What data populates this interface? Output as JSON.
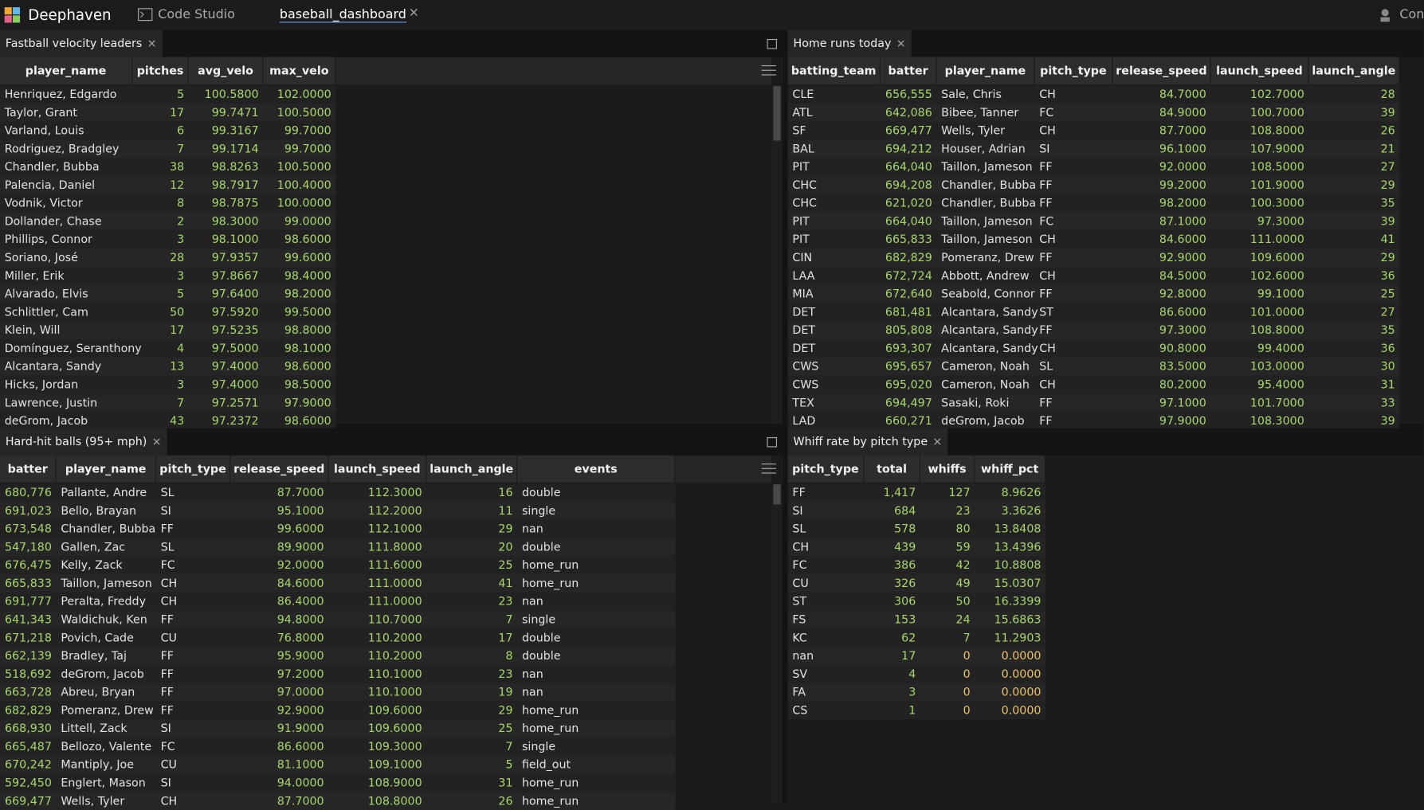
{
  "header": {
    "brand": "Deephaven",
    "tabs": [
      "Code Studio",
      "baseball_dashboard"
    ],
    "right": "Con"
  },
  "colors": {
    "number": "#a8d86a",
    "zero": "#e9c46a",
    "text": "#e2e2e2"
  },
  "panels": [
    {
      "title": "Fastball velocity leaders",
      "columns": [
        "player_name",
        "pitches",
        "avg_velo",
        "max_velo"
      ],
      "rows": [
        [
          "Henriquez, Edgardo",
          "5",
          "100.5800",
          "102.0000"
        ],
        [
          "Taylor, Grant",
          "17",
          "99.7471",
          "100.5000"
        ],
        [
          "Varland, Louis",
          "6",
          "99.3167",
          "99.7000"
        ],
        [
          "Rodriguez, Bradgley",
          "7",
          "99.1714",
          "99.7000"
        ],
        [
          "Chandler, Bubba",
          "38",
          "98.8263",
          "100.5000"
        ],
        [
          "Palencia, Daniel",
          "12",
          "98.7917",
          "100.4000"
        ],
        [
          "Vodnik, Victor",
          "8",
          "98.7875",
          "100.0000"
        ],
        [
          "Dollander, Chase",
          "2",
          "98.3000",
          "99.0000"
        ],
        [
          "Phillips, Connor",
          "3",
          "98.1000",
          "98.6000"
        ],
        [
          "Soriano, José",
          "28",
          "97.9357",
          "99.6000"
        ],
        [
          "Miller, Erik",
          "3",
          "97.8667",
          "98.4000"
        ],
        [
          "Alvarado, Elvis",
          "5",
          "97.6400",
          "98.2000"
        ],
        [
          "Schlittler, Cam",
          "50",
          "97.5920",
          "99.5000"
        ],
        [
          "Klein, Will",
          "17",
          "97.5235",
          "98.8000"
        ],
        [
          "Domínguez, Seranthony",
          "4",
          "97.5000",
          "98.1000"
        ],
        [
          "Alcantara, Sandy",
          "13",
          "97.4000",
          "98.6000"
        ],
        [
          "Hicks, Jordan",
          "3",
          "97.4000",
          "98.5000"
        ],
        [
          "Lawrence, Justin",
          "7",
          "97.2571",
          "97.9000"
        ],
        [
          "deGrom, Jacob",
          "43",
          "97.2372",
          "98.6000"
        ]
      ]
    },
    {
      "title": "Home runs today",
      "columns": [
        "batting_team",
        "batter",
        "player_name",
        "pitch_type",
        "release_speed",
        "launch_speed",
        "launch_angle"
      ],
      "rows": [
        [
          "CLE",
          "656,555",
          "Sale, Chris",
          "CH",
          "84.7000",
          "102.7000",
          "28"
        ],
        [
          "ATL",
          "642,086",
          "Bibee, Tanner",
          "FC",
          "84.9000",
          "100.7000",
          "39"
        ],
        [
          "SF",
          "669,477",
          "Wells, Tyler",
          "CH",
          "87.7000",
          "108.8000",
          "26"
        ],
        [
          "BAL",
          "694,212",
          "Houser, Adrian",
          "SI",
          "96.1000",
          "107.9000",
          "21"
        ],
        [
          "PIT",
          "664,040",
          "Taillon, Jameson",
          "FF",
          "92.0000",
          "108.5000",
          "27"
        ],
        [
          "CHC",
          "694,208",
          "Chandler, Bubba",
          "FF",
          "99.2000",
          "101.9000",
          "29"
        ],
        [
          "CHC",
          "621,020",
          "Chandler, Bubba",
          "FF",
          "98.2000",
          "100.3000",
          "35"
        ],
        [
          "PIT",
          "664,040",
          "Taillon, Jameson",
          "FC",
          "87.1000",
          "97.3000",
          "39"
        ],
        [
          "PIT",
          "665,833",
          "Taillon, Jameson",
          "CH",
          "84.6000",
          "111.0000",
          "41"
        ],
        [
          "CIN",
          "682,829",
          "Pomeranz, Drew",
          "FF",
          "92.9000",
          "109.6000",
          "29"
        ],
        [
          "LAA",
          "672,724",
          "Abbott, Andrew",
          "CH",
          "84.5000",
          "102.6000",
          "36"
        ],
        [
          "MIA",
          "672,640",
          "Seabold, Connor",
          "FF",
          "92.8000",
          "99.1000",
          "25"
        ],
        [
          "DET",
          "681,481",
          "Alcantara, Sandy",
          "ST",
          "86.6000",
          "101.0000",
          "27"
        ],
        [
          "DET",
          "805,808",
          "Alcantara, Sandy",
          "FF",
          "97.3000",
          "108.8000",
          "35"
        ],
        [
          "DET",
          "693,307",
          "Alcantara, Sandy",
          "CH",
          "90.8000",
          "99.4000",
          "36"
        ],
        [
          "CWS",
          "695,657",
          "Cameron, Noah",
          "SL",
          "83.5000",
          "103.0000",
          "30"
        ],
        [
          "CWS",
          "695,020",
          "Cameron, Noah",
          "CH",
          "80.2000",
          "95.4000",
          "31"
        ],
        [
          "TEX",
          "694,497",
          "Sasaki, Roki",
          "FF",
          "97.1000",
          "101.7000",
          "33"
        ],
        [
          "LAD",
          "660,271",
          "deGrom, Jacob",
          "FF",
          "97.9000",
          "108.3000",
          "39"
        ]
      ]
    },
    {
      "title": "Hard-hit balls (95+ mph)",
      "columns": [
        "batter",
        "player_name",
        "pitch_type",
        "release_speed",
        "launch_speed",
        "launch_angle",
        "events"
      ],
      "rows": [
        [
          "680,776",
          "Pallante, Andre",
          "SL",
          "87.7000",
          "112.3000",
          "16",
          "double"
        ],
        [
          "691,023",
          "Bello, Brayan",
          "SI",
          "95.1000",
          "112.2000",
          "11",
          "single"
        ],
        [
          "673,548",
          "Chandler, Bubba",
          "FF",
          "99.6000",
          "112.1000",
          "29",
          "nan"
        ],
        [
          "547,180",
          "Gallen, Zac",
          "SL",
          "89.9000",
          "111.8000",
          "20",
          "double"
        ],
        [
          "676,475",
          "Kelly, Zack",
          "FC",
          "92.0000",
          "111.6000",
          "25",
          "home_run"
        ],
        [
          "665,833",
          "Taillon, Jameson",
          "CH",
          "84.6000",
          "111.0000",
          "41",
          "home_run"
        ],
        [
          "691,777",
          "Peralta, Freddy",
          "CH",
          "86.4000",
          "111.0000",
          "23",
          "nan"
        ],
        [
          "641,343",
          "Waldichuk, Ken",
          "FF",
          "94.8000",
          "110.7000",
          "7",
          "single"
        ],
        [
          "671,218",
          "Povich, Cade",
          "CU",
          "76.8000",
          "110.2000",
          "17",
          "double"
        ],
        [
          "662,139",
          "Bradley, Taj",
          "FF",
          "95.9000",
          "110.2000",
          "8",
          "double"
        ],
        [
          "518,692",
          "deGrom, Jacob",
          "FF",
          "97.2000",
          "110.1000",
          "23",
          "nan"
        ],
        [
          "663,728",
          "Abreu, Bryan",
          "FF",
          "97.0000",
          "110.1000",
          "19",
          "nan"
        ],
        [
          "682,829",
          "Pomeranz, Drew",
          "FF",
          "92.9000",
          "109.6000",
          "29",
          "home_run"
        ],
        [
          "668,930",
          "Littell, Zack",
          "SI",
          "91.9000",
          "109.6000",
          "25",
          "home_run"
        ],
        [
          "665,487",
          "Bellozo, Valente",
          "FC",
          "86.6000",
          "109.3000",
          "7",
          "single"
        ],
        [
          "670,242",
          "Mantiply, Joe",
          "CU",
          "81.1000",
          "109.1000",
          "5",
          "field_out"
        ],
        [
          "592,450",
          "Englert, Mason",
          "SI",
          "94.0000",
          "108.9000",
          "31",
          "home_run"
        ],
        [
          "669,477",
          "Wells, Tyler",
          "CH",
          "87.7000",
          "108.8000",
          "26",
          "home_run"
        ]
      ]
    },
    {
      "title": "Whiff rate by pitch type",
      "columns": [
        "pitch_type",
        "total",
        "whiffs",
        "whiff_pct"
      ],
      "rows": [
        [
          "FF",
          "1,417",
          "127",
          "8.9626"
        ],
        [
          "SI",
          "684",
          "23",
          "3.3626"
        ],
        [
          "SL",
          "578",
          "80",
          "13.8408"
        ],
        [
          "CH",
          "439",
          "59",
          "13.4396"
        ],
        [
          "FC",
          "386",
          "42",
          "10.8808"
        ],
        [
          "CU",
          "326",
          "49",
          "15.0307"
        ],
        [
          "ST",
          "306",
          "50",
          "16.3399"
        ],
        [
          "FS",
          "153",
          "24",
          "15.6863"
        ],
        [
          "KC",
          "62",
          "7",
          "11.2903"
        ],
        [
          "nan",
          "17",
          "0",
          "0.0000"
        ],
        [
          "SV",
          "4",
          "0",
          "0.0000"
        ],
        [
          "FA",
          "3",
          "0",
          "0.0000"
        ],
        [
          "CS",
          "1",
          "0",
          "0.0000"
        ]
      ]
    }
  ]
}
